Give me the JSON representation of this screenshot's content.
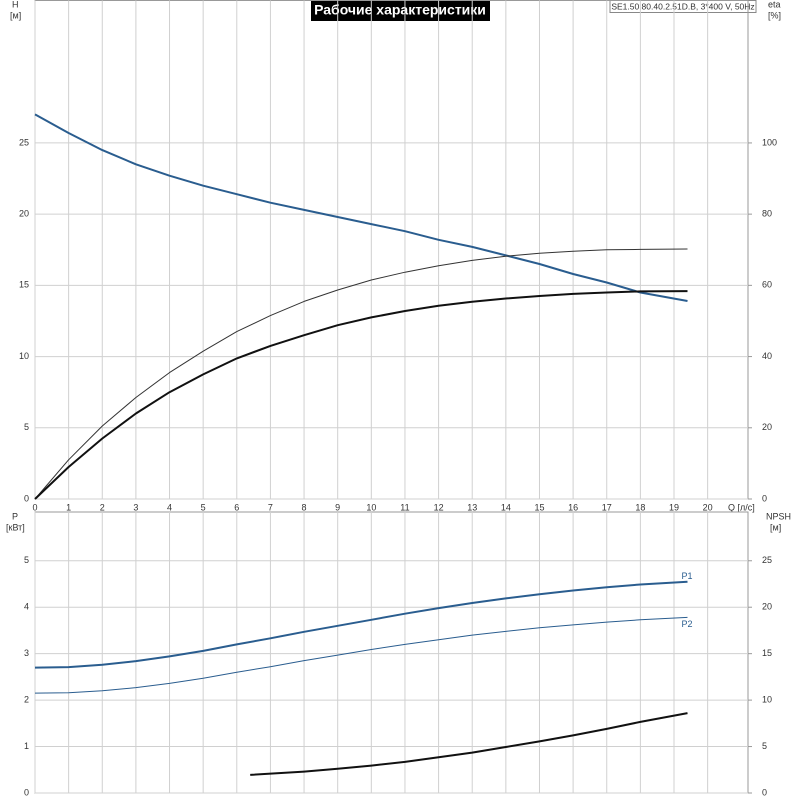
{
  "title": "Рабочие характеристики",
  "model": "SE1.50.80.40.2.51D.B, 3*400 V, 50Hz",
  "chart_data": [
    {
      "type": "line",
      "ylabel": "H",
      "yunit": "[м]",
      "y2label": "eta",
      "y2unit": "[%]",
      "xlabel": "Q [л/с]",
      "xlim": [
        0,
        21.2
      ],
      "xticks": [
        0,
        1,
        2,
        3,
        4,
        5,
        6,
        7,
        8,
        9,
        10,
        11,
        12,
        13,
        14,
        15,
        16,
        17,
        18,
        19,
        20
      ],
      "ylim": [
        0,
        35
      ],
      "yticks": [
        0,
        5,
        10,
        15,
        20,
        25
      ],
      "y2lim": [
        0,
        140
      ],
      "y2ticks": [
        0,
        20,
        40,
        60,
        80,
        100
      ],
      "grid": true,
      "series": [
        {
          "color": "#2a5d8f",
          "width": 2,
          "x": [
            0,
            1,
            2,
            3,
            4,
            5,
            6,
            7,
            8,
            9,
            10,
            11,
            12,
            13,
            14,
            15,
            16,
            17,
            18,
            19.4
          ],
          "values": [
            27,
            25.7,
            24.5,
            23.5,
            22.7,
            22.0,
            21.4,
            20.8,
            20.3,
            19.8,
            19.3,
            18.8,
            18.2,
            17.7,
            17.1,
            16.5,
            15.8,
            15.2,
            14.5,
            13.9
          ]
        },
        {
          "color": "#333333",
          "width": 1,
          "axis": "y2",
          "x": [
            0,
            1,
            2,
            3,
            4,
            5,
            6,
            7,
            8,
            9,
            10,
            11,
            12,
            13,
            14,
            15,
            16,
            17,
            18,
            19.4
          ],
          "values": [
            0,
            11,
            20.5,
            28.5,
            35.5,
            41.5,
            47,
            51.5,
            55.5,
            58.7,
            61.5,
            63.7,
            65.5,
            67,
            68.2,
            69,
            69.6,
            70,
            70.1,
            70.2
          ]
        },
        {
          "color": "#111111",
          "width": 2,
          "axis": "y2",
          "x": [
            0,
            1,
            2,
            3,
            4,
            5,
            6,
            7,
            8,
            9,
            10,
            11,
            12,
            13,
            14,
            15,
            16,
            17,
            18,
            19.4
          ],
          "values": [
            0,
            9,
            17,
            24,
            30,
            35,
            39.5,
            43,
            46,
            48.8,
            51,
            52.8,
            54.3,
            55.4,
            56.3,
            57,
            57.6,
            58,
            58.3,
            58.4
          ]
        }
      ]
    },
    {
      "type": "line",
      "ylabel": "P",
      "yunit": "[кВт]",
      "y2label": "NPSH",
      "y2unit": "[м]",
      "xlim": [
        0,
        21.2
      ],
      "xticks": [
        0,
        1,
        2,
        3,
        4,
        5,
        6,
        7,
        8,
        9,
        10,
        11,
        12,
        13,
        14,
        15,
        16,
        17,
        18,
        19,
        20
      ],
      "ylim": [
        0,
        6.05
      ],
      "yticks": [
        0,
        1,
        2,
        3,
        4,
        5
      ],
      "y2lim": [
        0,
        30.25
      ],
      "y2ticks": [
        0,
        5,
        10,
        15,
        20,
        25
      ],
      "grid": true,
      "series": [
        {
          "name": "P1",
          "color": "#2a5d8f",
          "width": 2,
          "x": [
            0,
            1,
            2,
            3,
            4,
            5,
            6,
            7,
            8,
            9,
            10,
            11,
            12,
            13,
            14,
            15,
            16,
            17,
            18,
            19.4
          ],
          "values": [
            2.7,
            2.71,
            2.76,
            2.84,
            2.94,
            3.06,
            3.2,
            3.33,
            3.47,
            3.6,
            3.73,
            3.86,
            3.98,
            4.09,
            4.19,
            4.28,
            4.36,
            4.43,
            4.49,
            4.55
          ]
        },
        {
          "name": "P2",
          "color": "#2a5d8f",
          "width": 1,
          "x": [
            0,
            1,
            2,
            3,
            4,
            5,
            6,
            7,
            8,
            9,
            10,
            11,
            12,
            13,
            14,
            15,
            16,
            17,
            18,
            19.4
          ],
          "values": [
            2.15,
            2.16,
            2.2,
            2.27,
            2.36,
            2.47,
            2.6,
            2.72,
            2.85,
            2.97,
            3.09,
            3.2,
            3.3,
            3.4,
            3.48,
            3.56,
            3.62,
            3.68,
            3.73,
            3.78
          ]
        },
        {
          "color": "#111111",
          "width": 2,
          "axis": "y2",
          "x": [
            6.4,
            8,
            9,
            10,
            11,
            12,
            13,
            14,
            15,
            16,
            17,
            18,
            19.4
          ],
          "values": [
            1.95,
            2.3,
            2.6,
            2.95,
            3.35,
            3.85,
            4.35,
            4.95,
            5.55,
            6.2,
            6.9,
            7.65,
            8.6
          ]
        }
      ]
    }
  ]
}
